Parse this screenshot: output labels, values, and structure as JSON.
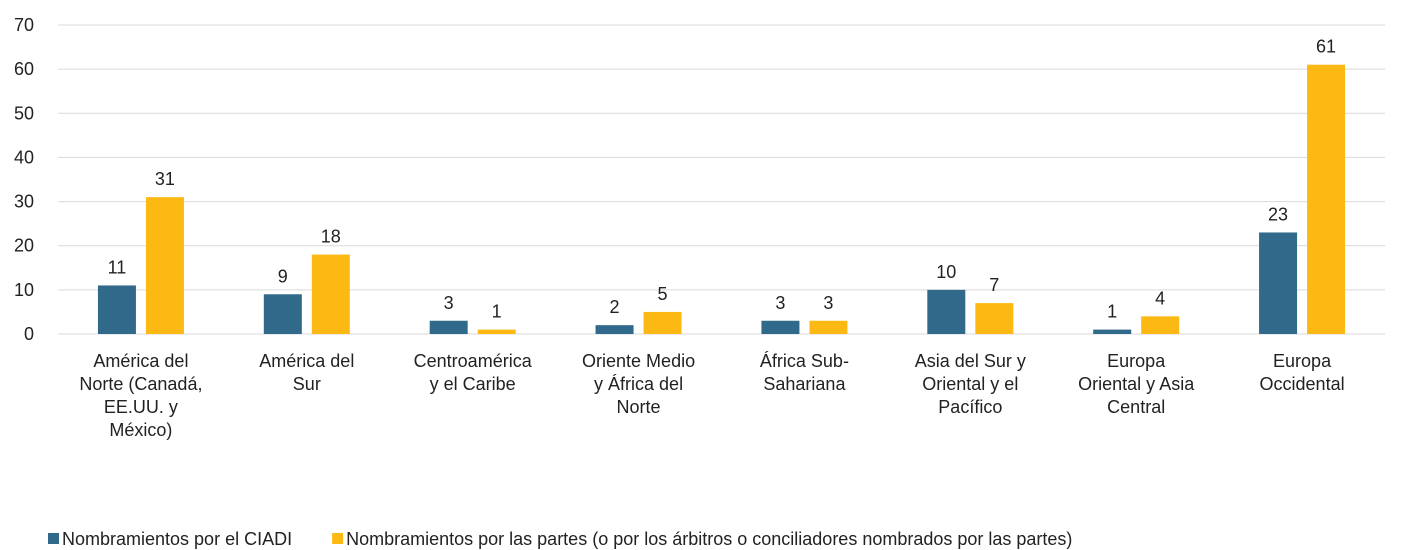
{
  "chart_data": {
    "type": "bar",
    "categories": [
      "América del\nNorte (Canadá,\nEE.UU. y\nMéxico)",
      "América del\nSur",
      "Centroamérica\ny el Caribe",
      "Oriente Medio\ny África del\nNorte",
      "África Sub-\nSahariana",
      "Asia del Sur y\nOriental y el\nPacífico",
      "Europa\nOriental y Asia\nCentral",
      "Europa\nOccidental"
    ],
    "series": [
      {
        "name": "Nombramientos por el CIADI",
        "color": "#31698a",
        "values": [
          11,
          9,
          3,
          2,
          3,
          10,
          1,
          23
        ]
      },
      {
        "name": "Nombramientos por las partes (o por los árbitros o conciliadores nombrados por las partes)",
        "color": "#fdb913",
        "values": [
          31,
          18,
          1,
          5,
          3,
          7,
          4,
          61
        ]
      }
    ],
    "ylim": [
      0,
      70
    ],
    "yticks": [
      0,
      10,
      20,
      30,
      40,
      50,
      60,
      70
    ],
    "grid": true,
    "legend": "bottom"
  }
}
